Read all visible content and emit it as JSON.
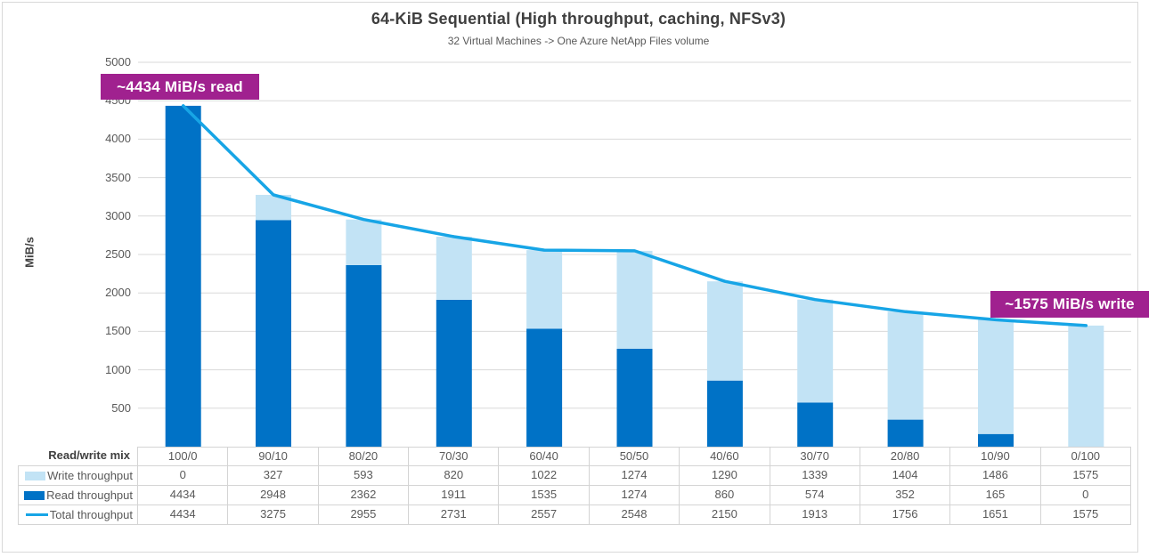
{
  "header": {
    "title": "64-KiB Sequential (High throughput, caching, NFSv3)",
    "subtitle": "32 Virtual Machines -> One Azure NetApp Files volume"
  },
  "y_axis": {
    "label": "MiB/s",
    "ticks": [
      5000,
      4500,
      4000,
      3500,
      3000,
      2500,
      2000,
      1500,
      1000,
      500
    ]
  },
  "chart_data": {
    "type": "bar",
    "subtype": "stacked-columns-with-line-overlay",
    "title": "64-KiB Sequential (High throughput, caching, NFSv3)",
    "subtitle": "32 Virtual Machines -> One Azure NetApp Files volume",
    "xlabel": "Read/write mix",
    "ylabel": "MiB/s",
    "ylim": [
      0,
      5000
    ],
    "y_tick_step": 500,
    "grid": "horizontal-only",
    "legend_position": "data-table-row-labels",
    "categories": [
      "100/0",
      "90/10",
      "80/20",
      "70/30",
      "60/40",
      "50/50",
      "40/60",
      "30/70",
      "20/80",
      "10/90",
      "0/100"
    ],
    "series": [
      {
        "name": "Write throughput",
        "role": "stack_top",
        "swatch": "rect",
        "color": "#C2E3F5",
        "values": [
          0,
          327,
          593,
          820,
          1022,
          1274,
          1290,
          1339,
          1404,
          1486,
          1575
        ]
      },
      {
        "name": "Read throughput",
        "role": "stack_bottom",
        "swatch": "rect",
        "color": "#0072C6",
        "values": [
          4434,
          2948,
          2362,
          1911,
          1535,
          1274,
          860,
          574,
          352,
          165,
          0
        ]
      },
      {
        "name": "Total throughput",
        "role": "line",
        "swatch": "line",
        "color": "#17A5E6",
        "values": [
          4434,
          3275,
          2955,
          2731,
          2557,
          2548,
          2150,
          1913,
          1756,
          1651,
          1575
        ]
      }
    ]
  },
  "table": {
    "corner_label": "Read/write mix"
  },
  "annotations": [
    {
      "text": "~4434 MiB/s read",
      "bg": "#A0218F",
      "text_color": "#FFFFFF"
    },
    {
      "text": "~1575 MiB/s write",
      "bg": "#A0218F",
      "text_color": "#FFFFFF"
    }
  ],
  "colors": {
    "gridline": "#D9D9D9",
    "frame_border": "#D9D9D9",
    "text_primary": "#3F3F3F",
    "text_secondary": "#595959"
  }
}
